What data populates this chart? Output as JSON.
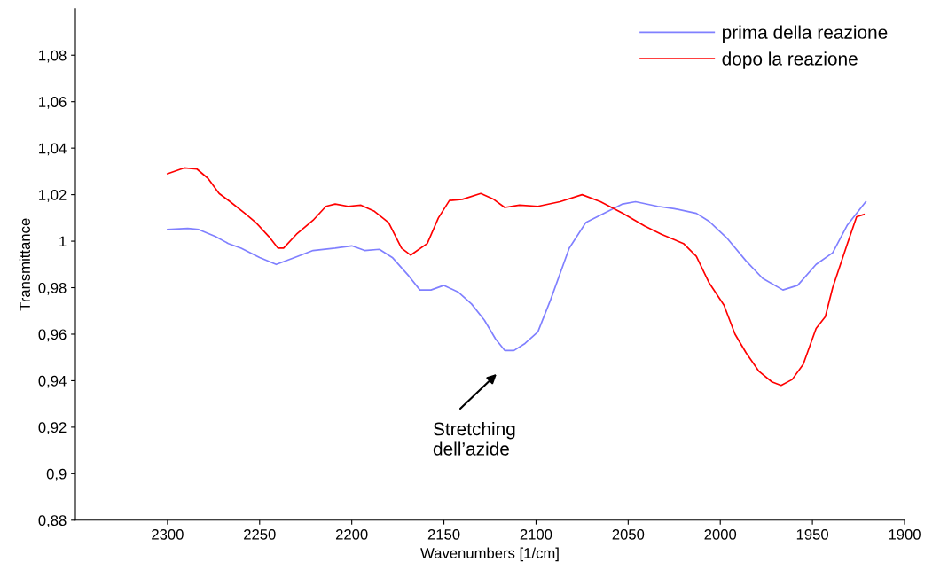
{
  "chart_data": {
    "type": "line",
    "xlabel": "Wavenumbers [1/cm]",
    "ylabel": "Transmittance",
    "xlim": [
      2350,
      1900
    ],
    "xticks": [
      2300,
      2250,
      2200,
      2150,
      2100,
      2050,
      2000,
      1950,
      1900
    ],
    "ylim": [
      0.88,
      1.1
    ],
    "yticks": [
      {
        "value": 0.88,
        "label": "0,88"
      },
      {
        "value": 0.9,
        "label": "0,9"
      },
      {
        "value": 0.92,
        "label": "0,92"
      },
      {
        "value": 0.94,
        "label": "0,94"
      },
      {
        "value": 0.96,
        "label": "0,96"
      },
      {
        "value": 0.98,
        "label": "0,98"
      },
      1,
      {
        "value": 1.02,
        "label": "1,02"
      },
      {
        "value": 1.04,
        "label": "1,04"
      },
      {
        "value": 1.06,
        "label": "1,06"
      },
      {
        "value": 1.08,
        "label": "1,08"
      }
    ],
    "grid": false,
    "legend": "top right",
    "marker": "none",
    "line_style": "solid",
    "series": [
      {
        "name": "prima della reazione",
        "color": "#8080ff",
        "x": [
          2300,
          2289,
          2283,
          2274,
          2267,
          2260,
          2250,
          2241,
          2231,
          2221,
          2209,
          2200,
          2193,
          2185,
          2178,
          2169,
          2163,
          2157,
          2150,
          2142,
          2135,
          2128,
          2122,
          2117,
          2112,
          2106,
          2099,
          2092,
          2082,
          2073,
          2063,
          2053,
          2046,
          2034,
          2025,
          2013,
          2006,
          1996,
          1986,
          1977,
          1966,
          1958,
          1948,
          1939,
          1931,
          1921
        ],
        "values": [
          1.005,
          1.0055,
          1.005,
          1.002,
          0.999,
          0.997,
          0.993,
          0.99,
          0.993,
          0.996,
          0.997,
          0.998,
          0.996,
          0.9965,
          0.993,
          0.985,
          0.979,
          0.979,
          0.981,
          0.978,
          0.973,
          0.966,
          0.958,
          0.953,
          0.953,
          0.956,
          0.961,
          0.975,
          0.997,
          1.008,
          1.012,
          1.016,
          1.017,
          1.015,
          1.014,
          1.012,
          1.0085,
          1.001,
          0.9915,
          0.984,
          0.979,
          0.981,
          0.99,
          0.995,
          1.007,
          1.017
        ]
      },
      {
        "name": "dopo la reazione",
        "color": "#ff0000",
        "x": [
          2300,
          2291,
          2284,
          2278,
          2272,
          2266,
          2258,
          2252,
          2245,
          2240,
          2237,
          2230,
          2221,
          2214,
          2209,
          2202,
          2195,
          2188,
          2180,
          2173,
          2168,
          2159,
          2153,
          2147,
          2140,
          2130,
          2123,
          2117,
          2109,
          2099,
          2087,
          2075,
          2065,
          2053,
          2041,
          2032,
          2020,
          2013,
          2006,
          1998,
          1992,
          1986,
          1979,
          1972,
          1967,
          1961,
          1955,
          1948,
          1943,
          1939,
          1931,
          1926,
          1922
        ],
        "values": [
          1.029,
          1.0315,
          1.031,
          1.027,
          1.0205,
          1.017,
          1.012,
          1.008,
          1.002,
          0.997,
          0.997,
          1.003,
          1.009,
          1.015,
          1.016,
          1.015,
          1.0155,
          1.013,
          1.008,
          0.997,
          0.994,
          0.999,
          1.01,
          1.0175,
          1.018,
          1.0205,
          1.018,
          1.0145,
          1.0155,
          1.015,
          1.017,
          1.02,
          1.017,
          1.012,
          1.0065,
          1.003,
          0.999,
          0.9935,
          0.982,
          0.9725,
          0.96,
          0.952,
          0.944,
          0.9395,
          0.938,
          0.9405,
          0.947,
          0.9625,
          0.9675,
          0.98,
          0.999,
          1.0105,
          1.0115
        ]
      }
    ],
    "annotations": [
      "Stretching\ndell’azide"
    ]
  }
}
